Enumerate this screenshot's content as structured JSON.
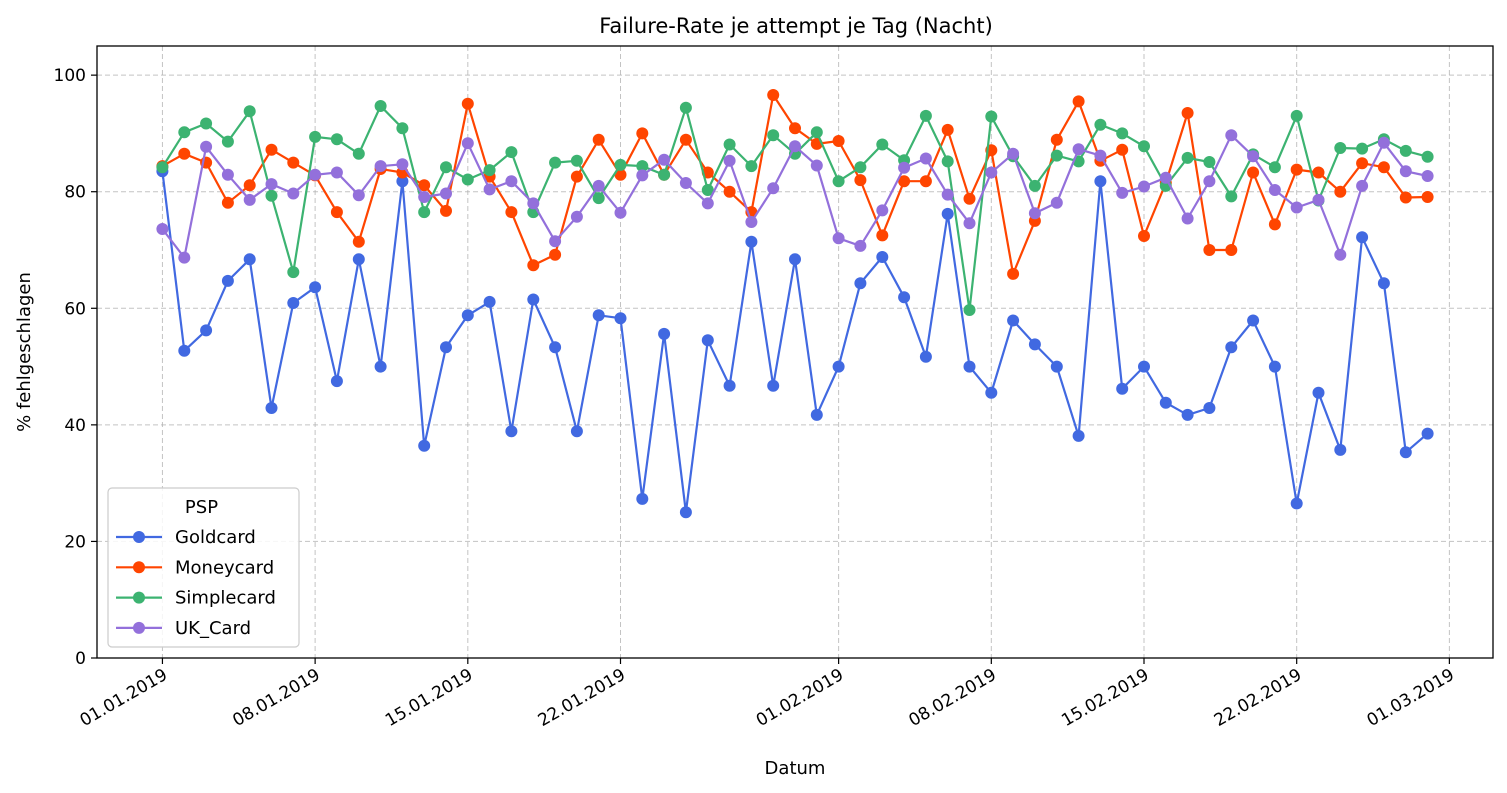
{
  "chart_data": {
    "type": "line",
    "title": "Failure-Rate je attempt je Tag (Nacht)",
    "xlabel": "Datum",
    "ylabel": "% fehlgeschlagen",
    "ylim": [
      0,
      105
    ],
    "yticks": [
      0,
      20,
      40,
      60,
      80,
      100
    ],
    "xlim": [
      "2018-12-29",
      "2019-03-03"
    ],
    "xticks": [
      {
        "date": "2019-01-01",
        "label": "01.01.2019"
      },
      {
        "date": "2019-01-08",
        "label": "08.01.2019"
      },
      {
        "date": "2019-01-15",
        "label": "15.01.2019"
      },
      {
        "date": "2019-01-22",
        "label": "22.01.2019"
      },
      {
        "date": "2019-02-01",
        "label": "01.02.2019"
      },
      {
        "date": "2019-02-08",
        "label": "08.02.2019"
      },
      {
        "date": "2019-02-15",
        "label": "15.02.2019"
      },
      {
        "date": "2019-02-22",
        "label": "22.02.2019"
      },
      {
        "date": "2019-03-01",
        "label": "01.03.2019"
      }
    ],
    "grid": true,
    "legend": {
      "title": "PSP",
      "position": "lower-left"
    },
    "x": [
      "2019-01-01",
      "2019-01-02",
      "2019-01-03",
      "2019-01-04",
      "2019-01-05",
      "2019-01-06",
      "2019-01-07",
      "2019-01-08",
      "2019-01-09",
      "2019-01-10",
      "2019-01-11",
      "2019-01-12",
      "2019-01-13",
      "2019-01-14",
      "2019-01-15",
      "2019-01-16",
      "2019-01-17",
      "2019-01-18",
      "2019-01-19",
      "2019-01-20",
      "2019-01-21",
      "2019-01-22",
      "2019-01-23",
      "2019-01-24",
      "2019-01-25",
      "2019-01-26",
      "2019-01-27",
      "2019-01-28",
      "2019-01-29",
      "2019-01-30",
      "2019-01-31",
      "2019-02-01",
      "2019-02-02",
      "2019-02-03",
      "2019-02-04",
      "2019-02-05",
      "2019-02-06",
      "2019-02-07",
      "2019-02-08",
      "2019-02-09",
      "2019-02-10",
      "2019-02-11",
      "2019-02-12",
      "2019-02-13",
      "2019-02-14",
      "2019-02-15",
      "2019-02-16",
      "2019-02-17",
      "2019-02-18",
      "2019-02-19",
      "2019-02-20",
      "2019-02-21",
      "2019-02-22",
      "2019-02-23",
      "2019-02-24",
      "2019-02-25",
      "2019-02-26",
      "2019-02-27",
      "2019-02-28"
    ],
    "series": [
      {
        "name": "Goldcard",
        "color": "#4169e1",
        "values": [
          83.5,
          52.7,
          56.2,
          64.7,
          68.4,
          42.9,
          60.9,
          63.6,
          47.5,
          68.4,
          50.0,
          81.8,
          36.4,
          53.3,
          58.8,
          61.1,
          38.9,
          61.5,
          53.3,
          38.9,
          58.8,
          58.3,
          27.3,
          55.6,
          25.0,
          54.5,
          46.7,
          71.4,
          46.7,
          68.4,
          41.7,
          50.0,
          64.3,
          68.8,
          61.9,
          51.7,
          76.2,
          50.0,
          45.5,
          57.9,
          53.8,
          50.0,
          38.1,
          81.8,
          46.2,
          50.0,
          43.8,
          41.7,
          42.9,
          53.3,
          57.9,
          50.0,
          26.5,
          45.5,
          35.7,
          72.2,
          64.3,
          35.3,
          38.5
        ]
      },
      {
        "name": "Moneycard",
        "color": "#ff4500",
        "values": [
          84.4,
          86.5,
          85.0,
          78.1,
          81.1,
          87.2,
          85.0,
          82.8,
          76.5,
          71.4,
          83.9,
          83.3,
          81.1,
          76.7,
          95.1,
          82.6,
          76.5,
          67.4,
          69.2,
          82.6,
          88.9,
          82.9,
          90.0,
          82.9,
          88.9,
          83.3,
          80.0,
          76.5,
          96.6,
          90.9,
          88.2,
          88.7,
          82.0,
          72.5,
          81.8,
          81.8,
          90.6,
          78.8,
          87.1,
          65.9,
          75.0,
          88.9,
          95.5,
          85.3,
          87.2,
          72.4,
          81.5,
          93.5,
          70.0,
          70.0,
          83.3,
          74.4,
          83.8,
          83.3,
          80.0,
          84.9,
          84.2,
          79.0,
          79.1
        ]
      },
      {
        "name": "Simplecard",
        "color": "#3cb371",
        "values": [
          84.2,
          90.2,
          91.7,
          88.6,
          93.8,
          79.3,
          66.2,
          89.4,
          89.0,
          86.5,
          94.7,
          90.9,
          76.5,
          84.2,
          82.1,
          83.7,
          86.8,
          76.5,
          85.0,
          85.3,
          78.9,
          84.6,
          84.4,
          82.9,
          94.4,
          80.3,
          88.1,
          84.4,
          89.7,
          86.5,
          90.2,
          81.8,
          84.2,
          88.1,
          85.4,
          93.0,
          85.2,
          59.7,
          92.9,
          86.1,
          81.0,
          86.2,
          85.2,
          91.5,
          90.0,
          87.8,
          81.0,
          85.8,
          85.1,
          79.2,
          86.4,
          84.2,
          93.0,
          78.5,
          87.5,
          87.4,
          89.0,
          87.0,
          86.0
        ]
      },
      {
        "name": "UK_Card",
        "color": "#9370db",
        "values": [
          73.6,
          68.7,
          87.7,
          82.9,
          78.6,
          81.3,
          79.7,
          82.9,
          83.3,
          79.4,
          84.4,
          84.7,
          79.1,
          79.7,
          88.3,
          80.4,
          81.8,
          78.0,
          71.5,
          75.7,
          81.0,
          76.4,
          82.8,
          85.5,
          81.5,
          78.0,
          85.3,
          74.8,
          80.6,
          87.8,
          84.5,
          72.0,
          70.7,
          76.8,
          84.1,
          85.7,
          79.5,
          74.6,
          83.3,
          86.5,
          76.3,
          78.1,
          87.3,
          86.2,
          79.8,
          80.9,
          82.4,
          75.4,
          81.8,
          89.7,
          86.1,
          80.3,
          77.3,
          78.6,
          69.2,
          81.0,
          88.4,
          83.5,
          82.7
        ]
      }
    ]
  }
}
